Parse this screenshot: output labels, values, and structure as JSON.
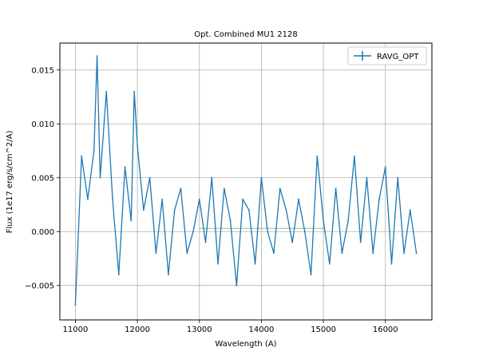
{
  "chart_data": {
    "type": "line",
    "title": "Opt. Combined MU1 2128",
    "xlabel": "Wavelength (A)",
    "ylabel": "Flux (1e17 erg/s/cm^2/A)",
    "xlim": [
      10750,
      16750
    ],
    "ylim": [
      -0.0082,
      0.0175
    ],
    "xticks": [
      11000,
      12000,
      13000,
      14000,
      15000,
      16000
    ],
    "yticks": [
      -0.005,
      0.0,
      0.005,
      0.01,
      0.015
    ],
    "xtick_labels": [
      "11000",
      "12000",
      "13000",
      "14000",
      "15000",
      "16000"
    ],
    "ytick_labels": [
      "−0.005",
      "0.000",
      "0.005",
      "0.010",
      "0.015"
    ],
    "grid": true,
    "legend": {
      "placement": "top-right",
      "entries": [
        "RAVG_OPT"
      ]
    },
    "series": [
      {
        "name": "RAVG_OPT",
        "color": "#1f77b4",
        "x": [
          11000,
          11100,
          11200,
          11300,
          11350,
          11400,
          11500,
          11600,
          11700,
          11800,
          11900,
          11950,
          12000,
          12100,
          12200,
          12300,
          12400,
          12500,
          12600,
          12700,
          12800,
          12900,
          13000,
          13100,
          13200,
          13300,
          13400,
          13500,
          13600,
          13700,
          13800,
          13900,
          14000,
          14100,
          14200,
          14300,
          14400,
          14500,
          14600,
          14700,
          14800,
          14900,
          15000,
          15100,
          15200,
          15300,
          15400,
          15500,
          15600,
          15700,
          15800,
          15900,
          16000,
          16100,
          16200,
          16300,
          16400,
          16500
        ],
        "y": [
          -0.0068,
          0.007,
          0.003,
          0.0075,
          0.0163,
          0.005,
          0.013,
          0.003,
          -0.004,
          0.006,
          0.001,
          0.013,
          0.008,
          0.002,
          0.005,
          -0.002,
          0.003,
          -0.004,
          0.002,
          0.004,
          -0.002,
          0.0,
          0.003,
          -0.001,
          0.005,
          -0.003,
          0.004,
          0.001,
          -0.005,
          0.003,
          0.002,
          -0.003,
          0.005,
          0.0,
          -0.002,
          0.004,
          0.002,
          -0.001,
          0.003,
          0.0,
          -0.004,
          0.007,
          0.001,
          -0.003,
          0.004,
          -0.002,
          0.001,
          0.007,
          -0.001,
          0.005,
          -0.002,
          0.003,
          0.006,
          -0.003,
          0.005,
          -0.002,
          0.002,
          -0.002
        ]
      }
    ],
    "secondary_line": {
      "color": "#2ca02c",
      "y": 0.0003,
      "x_range": [
        13000,
        15000
      ]
    }
  }
}
